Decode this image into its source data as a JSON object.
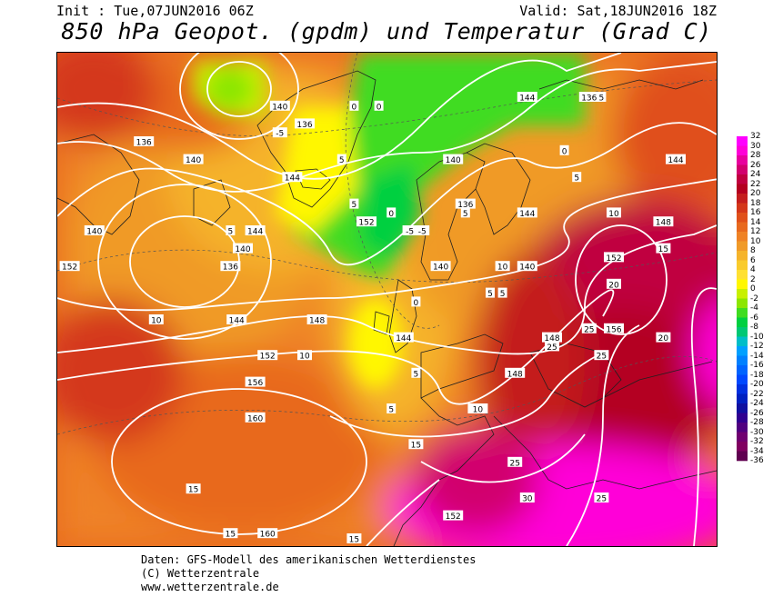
{
  "header": {
    "init": "Init : Tue,07JUN2016 06Z",
    "valid": "Valid: Sat,18JUN2016 18Z",
    "title": "850 hPa Geopot. (gpdm) und Temperatur (Grad C)"
  },
  "legend": {
    "labels": [
      "32",
      "30",
      "28",
      "26",
      "24",
      "22",
      "20",
      "18",
      "16",
      "14",
      "12",
      "10",
      "8",
      "6",
      "4",
      "2",
      "0",
      "-2",
      "-4",
      "-6",
      "-8",
      "-10",
      "-12",
      "-14",
      "-16",
      "-18",
      "-20",
      "-22",
      "-24",
      "-26",
      "-28",
      "-30",
      "-32",
      "-34",
      "-36"
    ],
    "colors": [
      "#ff00ff",
      "#ff00d8",
      "#e8009e",
      "#d2006e",
      "#c00040",
      "#b40020",
      "#c41e1e",
      "#d4371a",
      "#e0501a",
      "#e8691e",
      "#ef8225",
      "#f09a28",
      "#f5b32a",
      "#f9cb2c",
      "#ffe032",
      "#fff700",
      "#c8f000",
      "#8ce600",
      "#40dc20",
      "#00d040",
      "#00c874",
      "#00bec8",
      "#00a0ff",
      "#0080ff",
      "#0064ff",
      "#0048ff",
      "#0030e0",
      "#0020c0",
      "#1010a0",
      "#300090",
      "#500080",
      "#700070",
      "#800060",
      "#600050"
    ]
  },
  "map": {
    "geopotential_labels": [
      {
        "text": "136",
        "lon": -48,
        "lat": 72
      },
      {
        "text": "140",
        "lon": -40,
        "lat": 70
      },
      {
        "text": "140",
        "lon": -26,
        "lat": 76
      },
      {
        "text": "136",
        "lon": -22,
        "lat": 74
      },
      {
        "text": "140",
        "lon": -56,
        "lat": 62
      },
      {
        "text": "152",
        "lon": -60,
        "lat": 58
      },
      {
        "text": "144",
        "lon": -24,
        "lat": 68
      },
      {
        "text": "144",
        "lon": -30,
        "lat": 62
      },
      {
        "text": "140",
        "lon": -32,
        "lat": 60
      },
      {
        "text": "136",
        "lon": -34,
        "lat": 58
      },
      {
        "text": "152",
        "lon": -12,
        "lat": 63
      },
      {
        "text": "136",
        "lon": 4,
        "lat": 65
      },
      {
        "text": "140",
        "lon": 2,
        "lat": 70
      },
      {
        "text": "144",
        "lon": 14,
        "lat": 77
      },
      {
        "text": "136",
        "lon": 24,
        "lat": 77
      },
      {
        "text": "140",
        "lon": 0,
        "lat": 58
      },
      {
        "text": "144",
        "lon": 14,
        "lat": 64
      },
      {
        "text": "140",
        "lon": 14,
        "lat": 58
      },
      {
        "text": "144",
        "lon": 38,
        "lat": 70
      },
      {
        "text": "148",
        "lon": 36,
        "lat": 63
      },
      {
        "text": "152",
        "lon": 28,
        "lat": 59
      },
      {
        "text": "156",
        "lon": 28,
        "lat": 51
      },
      {
        "text": "148",
        "lon": 18,
        "lat": 50
      },
      {
        "text": "148",
        "lon": 12,
        "lat": 46
      },
      {
        "text": "152",
        "lon": 6,
        "lat": 42
      },
      {
        "text": "144",
        "lon": -6,
        "lat": 50
      },
      {
        "text": "148",
        "lon": -20,
        "lat": 52
      },
      {
        "text": "144",
        "lon": -33,
        "lat": 52
      },
      {
        "text": "152",
        "lon": -28,
        "lat": 48
      },
      {
        "text": "156",
        "lon": -30,
        "lat": 45
      },
      {
        "text": "160",
        "lon": -30,
        "lat": 41
      },
      {
        "text": "160",
        "lon": -28,
        "lat": 28
      },
      {
        "text": "152",
        "lon": 2,
        "lat": 30
      }
    ],
    "temperature_labels": [
      {
        "text": "0",
        "lon": -14,
        "lat": 76
      },
      {
        "text": "0",
        "lon": -10,
        "lat": 76
      },
      {
        "text": "-5",
        "lon": -26,
        "lat": 73
      },
      {
        "text": "5",
        "lon": -16,
        "lat": 70
      },
      {
        "text": "5",
        "lon": -14,
        "lat": 65
      },
      {
        "text": "0",
        "lon": -8,
        "lat": 64
      },
      {
        "text": "-5",
        "lon": -5,
        "lat": 62
      },
      {
        "text": "-5",
        "lon": -3,
        "lat": 62
      },
      {
        "text": "0",
        "lon": -4,
        "lat": 54
      },
      {
        "text": "5",
        "lon": 4,
        "lat": 64
      },
      {
        "text": "5",
        "lon": 8,
        "lat": 55
      },
      {
        "text": "5",
        "lon": 10,
        "lat": 55
      },
      {
        "text": "5",
        "lon": -34,
        "lat": 62
      },
      {
        "text": "0",
        "lon": 20,
        "lat": 71
      },
      {
        "text": "5",
        "lon": 22,
        "lat": 68
      },
      {
        "text": "5",
        "lon": 26,
        "lat": 77
      },
      {
        "text": "10",
        "lon": 28,
        "lat": 64
      },
      {
        "text": "15",
        "lon": 36,
        "lat": 60
      },
      {
        "text": "20",
        "lon": 28,
        "lat": 56
      },
      {
        "text": "10",
        "lon": 10,
        "lat": 58
      },
      {
        "text": "25",
        "lon": 24,
        "lat": 51
      },
      {
        "text": "25",
        "lon": 26,
        "lat": 48
      },
      {
        "text": "25",
        "lon": 18,
        "lat": 49
      },
      {
        "text": "20",
        "lon": 36,
        "lat": 50
      },
      {
        "text": "10",
        "lon": -46,
        "lat": 52
      },
      {
        "text": "10",
        "lon": -22,
        "lat": 48
      },
      {
        "text": "5",
        "lon": -4,
        "lat": 46
      },
      {
        "text": "5",
        "lon": -8,
        "lat": 42
      },
      {
        "text": "10",
        "lon": 6,
        "lat": 42
      },
      {
        "text": "15",
        "lon": -4,
        "lat": 38
      },
      {
        "text": "15",
        "lon": -40,
        "lat": 33
      },
      {
        "text": "15",
        "lon": -34,
        "lat": 28
      },
      {
        "text": "15",
        "lon": -14,
        "lat": 26
      },
      {
        "text": "25",
        "lon": 12,
        "lat": 36
      },
      {
        "text": "30",
        "lon": 14,
        "lat": 32
      },
      {
        "text": "25",
        "lon": 26,
        "lat": 32
      }
    ]
  },
  "credits": [
    "Daten: GFS-Modell des amerikanischen Wetterdienstes",
    "(C) Wetterzentrale",
    "www.wetterzentrale.de"
  ]
}
